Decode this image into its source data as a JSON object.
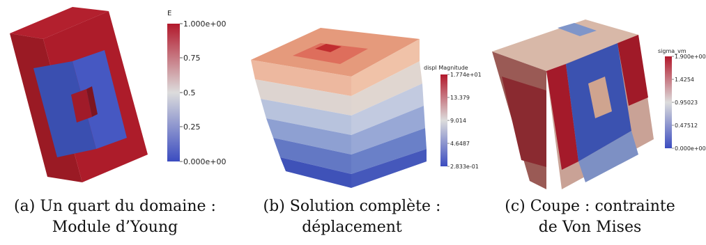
{
  "panels": [
    {
      "caption_line1": "(a) Un quart du domaine :",
      "caption_line2": "Module d’Young",
      "colorbar": {
        "title": "E",
        "ticks": [
          "1.000e+00",
          "0.75",
          "0.5",
          "0.25",
          "0.000e+00"
        ]
      }
    },
    {
      "caption_line1": "(b) Solution complète :",
      "caption_line2": "déplacement",
      "colorbar": {
        "title": "displ Magnitude",
        "ticks": [
          "1.774e+01",
          "13.379",
          "9.014",
          "4.6487",
          "2.833e-01"
        ]
      }
    },
    {
      "caption_line1": "(c) Coupe : contrainte",
      "caption_line2": "de Von Mises",
      "colorbar": {
        "title": "sigma_vm",
        "ticks": [
          "1.900e+00",
          "1.4254",
          "0.95023",
          "0.47512",
          "0.000e+00"
        ]
      }
    }
  ],
  "colors": {
    "high": "#b2182b",
    "mid": "#e6e0dc",
    "low": "#3b4cc0"
  }
}
